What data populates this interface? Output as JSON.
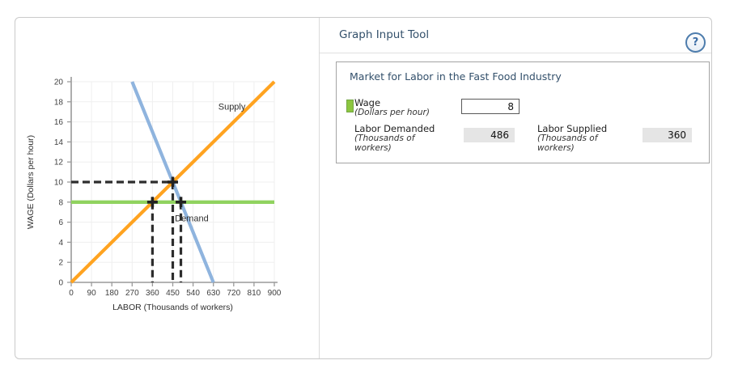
{
  "tool": {
    "title": "Graph Input Tool",
    "help_glyph": "?",
    "panel": {
      "title": "Market for Labor in the Fast Food Industry",
      "wage": {
        "label": "Wage",
        "sublabel": "(Dollars per hour)",
        "value": "8",
        "swatch_color": "#8cc63f"
      },
      "labor_demanded": {
        "label": "Labor Demanded",
        "sublabel": "(Thousands of workers)",
        "value": "486"
      },
      "labor_supplied": {
        "label": "Labor Supplied",
        "sublabel": "(Thousands of workers)",
        "value": "360"
      }
    }
  },
  "chart_data": {
    "type": "line",
    "title": "",
    "xlabel": "LABOR (Thousands of workers)",
    "ylabel": "WAGE (Dollars per hour)",
    "xlim": [
      0,
      900
    ],
    "ylim": [
      0,
      20
    ],
    "xticks": [
      0,
      90,
      180,
      270,
      360,
      450,
      540,
      630,
      720,
      810,
      900
    ],
    "yticks": [
      0,
      2,
      4,
      6,
      8,
      10,
      12,
      14,
      16,
      18,
      20
    ],
    "grid": true,
    "grid_color": "#efefef",
    "axis_color": "#9a9a9a",
    "series": [
      {
        "name": "Supply",
        "color": "#FFA320",
        "width": 4.2,
        "points": [
          [
            0,
            0
          ],
          [
            900,
            20
          ]
        ],
        "label": {
          "text": "Supply",
          "x": 712,
          "y": 17.2
        }
      },
      {
        "name": "Demand",
        "color": "#8FB4DE",
        "width": 4.2,
        "points": [
          [
            270,
            20
          ],
          [
            630,
            0
          ]
        ],
        "label": {
          "text": "Demand",
          "x": 534,
          "y": 6.1
        }
      },
      {
        "name": "Wage line",
        "color": "#90D35F",
        "width": 4.4,
        "points": [
          [
            0,
            8
          ],
          [
            900,
            8
          ]
        ],
        "label": null
      }
    ],
    "guide_style": {
      "color": "#2d2d2d",
      "width": 3.2,
      "dash": "9 5"
    },
    "guide_lines": [
      {
        "points": [
          [
            0,
            10
          ],
          [
            450,
            10
          ]
        ]
      },
      {
        "points": [
          [
            450,
            10
          ],
          [
            450,
            0
          ]
        ]
      },
      {
        "points": [
          [
            360,
            8
          ],
          [
            360,
            0
          ]
        ]
      },
      {
        "points": [
          [
            486,
            8
          ],
          [
            486,
            0
          ]
        ]
      }
    ],
    "markers": {
      "color": "#222222",
      "arm": 6.5,
      "width": 3.6,
      "points": [
        [
          360,
          8
        ],
        [
          450,
          10
        ],
        [
          486,
          8
        ]
      ]
    }
  }
}
